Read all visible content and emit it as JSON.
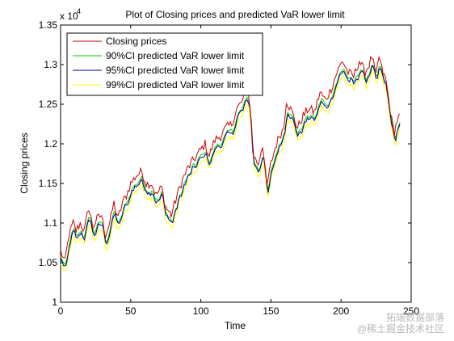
{
  "chart_data": {
    "type": "line",
    "title": "Plot of Closing prices and predicted VaR lower limit",
    "xlabel": "Time",
    "ylabel": "Closing prices",
    "xlim": [
      0,
      250
    ],
    "ylim": [
      1.0,
      1.35
    ],
    "y_exponent_label": "x 10",
    "y_exponent_power": "4",
    "xticks": [
      "0",
      "50",
      "100",
      "150",
      "200",
      "250"
    ],
    "yticks": [
      "1",
      "1.05",
      "1.1",
      "1.15",
      "1.2",
      "1.25",
      "1.3",
      "1.35"
    ],
    "legend_position": "top-left",
    "series": [
      {
        "name": "Closing prices",
        "color": "#cc0000"
      },
      {
        "name": "90%CI predicted VaR lower limit",
        "color": "#00cc00"
      },
      {
        "name": "95%CI predicted VaR lower limit",
        "color": "#00008b"
      },
      {
        "name": "99%CI predicted VaR lower limit",
        "color": "#ffff00"
      }
    ],
    "series_offsets": [
      0,
      -0.0085,
      -0.011,
      -0.0175
    ],
    "closing_anchors": [
      [
        0,
        1.065
      ],
      [
        3,
        1.05
      ],
      [
        6,
        1.085
      ],
      [
        9,
        1.1
      ],
      [
        11,
        1.09
      ],
      [
        14,
        1.1
      ],
      [
        17,
        1.09
      ],
      [
        20,
        1.12
      ],
      [
        23,
        1.095
      ],
      [
        26,
        1.105
      ],
      [
        29,
        1.11
      ],
      [
        32,
        1.085
      ],
      [
        35,
        1.1
      ],
      [
        38,
        1.125
      ],
      [
        41,
        1.105
      ],
      [
        44,
        1.125
      ],
      [
        47,
        1.135
      ],
      [
        50,
        1.15
      ],
      [
        54,
        1.16
      ],
      [
        58,
        1.165
      ],
      [
        61,
        1.15
      ],
      [
        65,
        1.15
      ],
      [
        68,
        1.135
      ],
      [
        72,
        1.145
      ],
      [
        75,
        1.12
      ],
      [
        79,
        1.11
      ],
      [
        83,
        1.135
      ],
      [
        87,
        1.155
      ],
      [
        91,
        1.17
      ],
      [
        95,
        1.18
      ],
      [
        99,
        1.19
      ],
      [
        103,
        1.2
      ],
      [
        106,
        1.185
      ],
      [
        110,
        1.205
      ],
      [
        114,
        1.21
      ],
      [
        118,
        1.22
      ],
      [
        122,
        1.225
      ],
      [
        126,
        1.245
      ],
      [
        130,
        1.255
      ],
      [
        133,
        1.27
      ],
      [
        135,
        1.25
      ],
      [
        137,
        1.19
      ],
      [
        139,
        1.18
      ],
      [
        141,
        1.175
      ],
      [
        144,
        1.2
      ],
      [
        147,
        1.145
      ],
      [
        150,
        1.175
      ],
      [
        153,
        1.195
      ],
      [
        156,
        1.21
      ],
      [
        159,
        1.22
      ],
      [
        161,
        1.255
      ],
      [
        165,
        1.24
      ],
      [
        169,
        1.22
      ],
      [
        173,
        1.235
      ],
      [
        177,
        1.245
      ],
      [
        181,
        1.24
      ],
      [
        185,
        1.265
      ],
      [
        189,
        1.255
      ],
      [
        193,
        1.27
      ],
      [
        197,
        1.29
      ],
      [
        201,
        1.305
      ],
      [
        205,
        1.29
      ],
      [
        209,
        1.285
      ],
      [
        213,
        1.305
      ],
      [
        217,
        1.29
      ],
      [
        220,
        1.3
      ],
      [
        222,
        1.31
      ],
      [
        225,
        1.285
      ],
      [
        227,
        1.31
      ],
      [
        229,
        1.295
      ],
      [
        232,
        1.28
      ],
      [
        234,
        1.255
      ],
      [
        236,
        1.23
      ],
      [
        238,
        1.215
      ],
      [
        240,
        1.23
      ],
      [
        242,
        1.235
      ]
    ]
  },
  "watermark": {
    "line1": "拓端数据部落",
    "line2": "@稀土掘金技术社区"
  }
}
